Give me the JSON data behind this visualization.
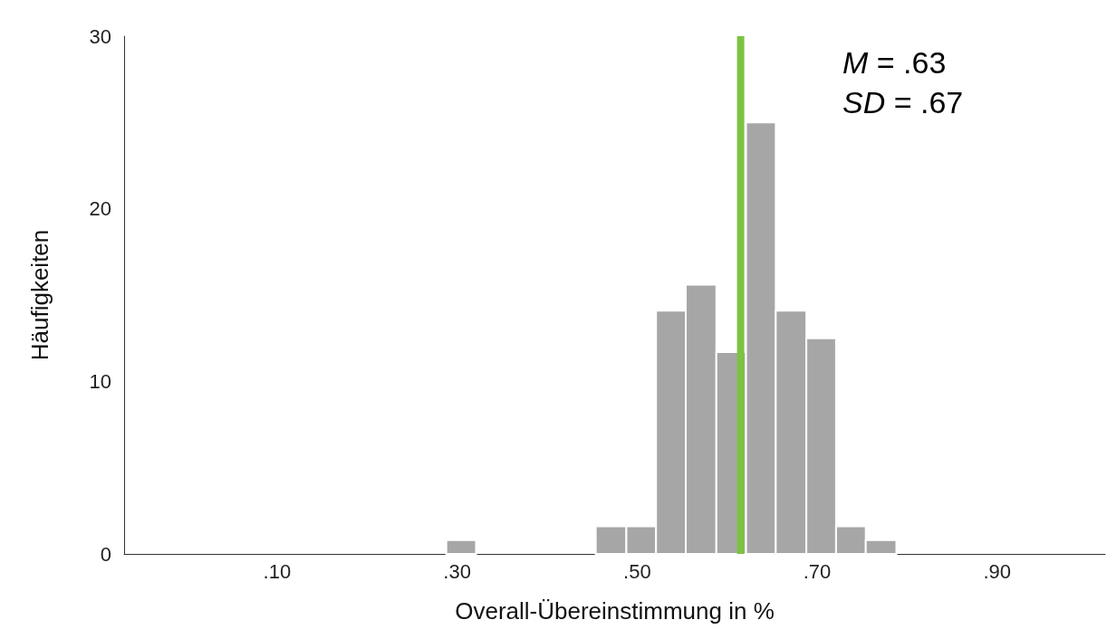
{
  "chart_data": {
    "type": "histogram",
    "xlabel": "Overall-Übereinstimmung in %",
    "ylabel": "Häufigkeiten",
    "bins": [
      0.288,
      0.321,
      0.454,
      0.488,
      0.521,
      0.554,
      0.588,
      0.621,
      0.654,
      0.688,
      0.721,
      0.754,
      0.788
    ],
    "values": [
      0.8,
      0,
      1.6,
      1.6,
      14.1,
      15.6,
      11.7,
      25,
      14.1,
      12.5,
      1.6,
      0.8
    ],
    "color": "#a6a6a6",
    "xlim": [
      -0.07,
      1.02
    ],
    "xticks": [
      {
        "value": 0.1,
        "label": ".10"
      },
      {
        "value": 0.3,
        "label": ".30"
      },
      {
        "value": 0.5,
        "label": ".50"
      },
      {
        "value": 0.7,
        "label": ".70"
      },
      {
        "value": 0.9,
        "label": ".90"
      }
    ],
    "ylim": [
      0,
      30
    ],
    "yticks": [
      0,
      10,
      20,
      30
    ],
    "ref_lines": [
      {
        "axis": "x",
        "value": 0.615,
        "label": null,
        "color": "#7dc242"
      }
    ],
    "annotations": [
      "M = .63",
      "SD = .67"
    ],
    "grid": false
  }
}
